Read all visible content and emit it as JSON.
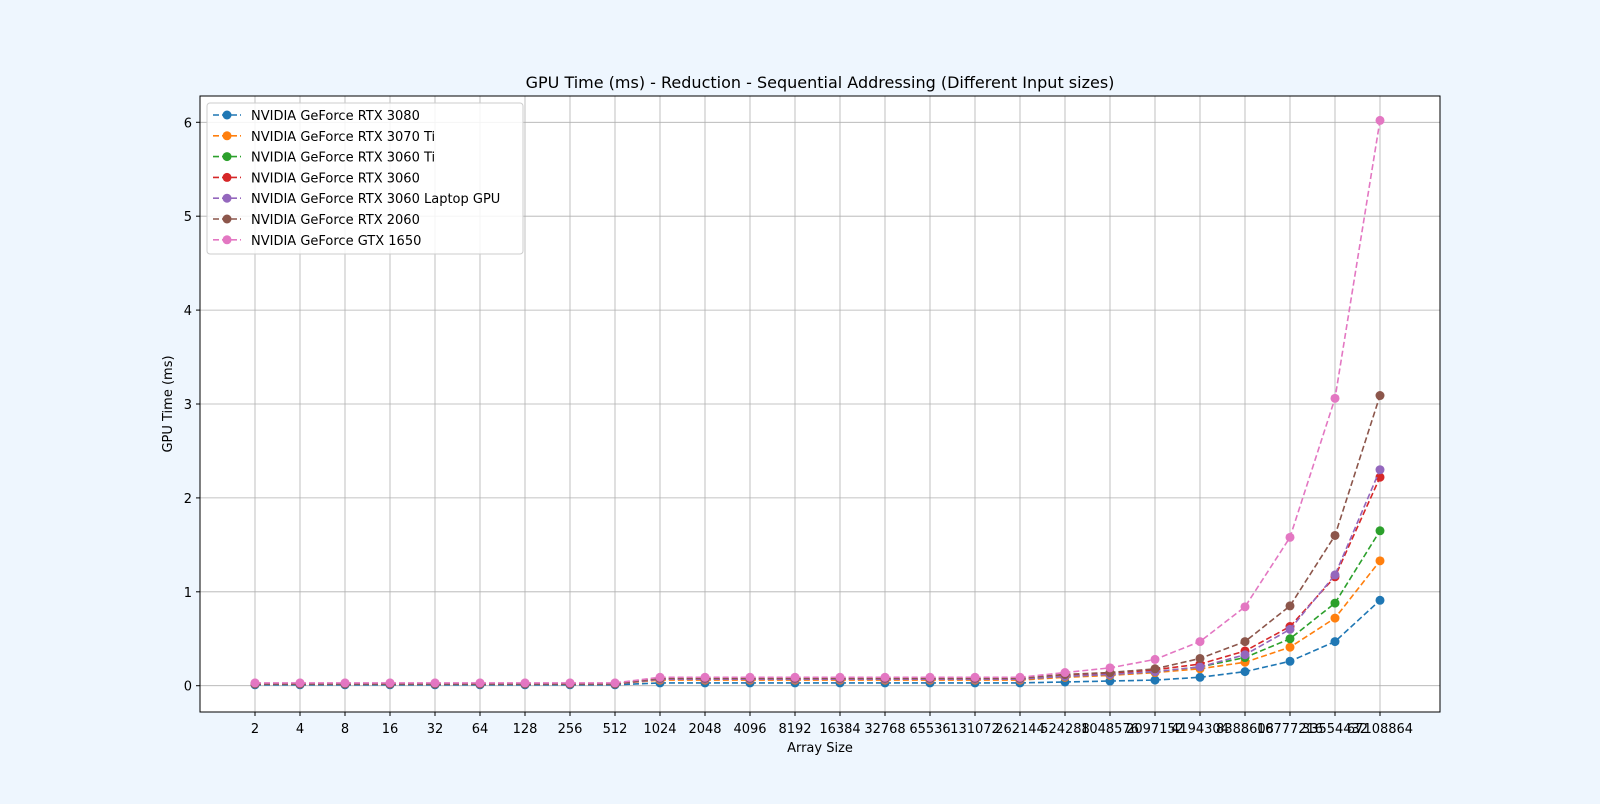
{
  "chart_data": {
    "type": "line",
    "title": "GPU Time (ms) - Reduction - Sequential Addressing (Different Input sizes)",
    "xlabel": "Array Size",
    "ylabel": "GPU Time (ms)",
    "categories": [
      "2",
      "4",
      "8",
      "16",
      "32",
      "64",
      "128",
      "256",
      "512",
      "1024",
      "2048",
      "4096",
      "8192",
      "16384",
      "32768",
      "65536",
      "131072",
      "262144",
      "524288",
      "1048576",
      "2097152",
      "4194304",
      "8388608",
      "16777216",
      "33554432",
      "67108864"
    ],
    "y_ticks": [
      "0",
      "1",
      "2",
      "3",
      "4",
      "5",
      "6"
    ],
    "ylim": [
      -0.28,
      6.28
    ],
    "grid": true,
    "legend_position": "top-left",
    "line_style": "dashed",
    "marker": "circle",
    "colors": {
      "background": "#eef6fe",
      "plot_area": "#ffffff",
      "grid": "#b0b0b0"
    },
    "series": [
      {
        "name": "NVIDIA GeForce RTX 3080",
        "color": "#1f77b4",
        "values": [
          0.01,
          0.01,
          0.01,
          0.01,
          0.01,
          0.01,
          0.01,
          0.01,
          0.01,
          0.03,
          0.03,
          0.03,
          0.03,
          0.03,
          0.03,
          0.03,
          0.03,
          0.03,
          0.04,
          0.05,
          0.06,
          0.09,
          0.15,
          0.26,
          0.47,
          0.91
        ]
      },
      {
        "name": "NVIDIA GeForce RTX 3070 Ti",
        "color": "#ff7f0e",
        "values": [
          0.02,
          0.02,
          0.02,
          0.02,
          0.02,
          0.02,
          0.02,
          0.02,
          0.02,
          0.06,
          0.06,
          0.06,
          0.06,
          0.06,
          0.06,
          0.06,
          0.06,
          0.06,
          0.09,
          0.11,
          0.14,
          0.18,
          0.25,
          0.41,
          0.72,
          1.33
        ]
      },
      {
        "name": "NVIDIA GeForce RTX 3060 Ti",
        "color": "#2ca02c",
        "values": [
          0.02,
          0.02,
          0.02,
          0.02,
          0.02,
          0.02,
          0.02,
          0.02,
          0.02,
          0.07,
          0.07,
          0.07,
          0.07,
          0.07,
          0.07,
          0.07,
          0.07,
          0.07,
          0.1,
          0.12,
          0.15,
          0.2,
          0.3,
          0.5,
          0.88,
          1.65
        ]
      },
      {
        "name": "NVIDIA GeForce RTX 3060",
        "color": "#d62728",
        "values": [
          0.02,
          0.02,
          0.02,
          0.02,
          0.02,
          0.02,
          0.02,
          0.02,
          0.02,
          0.07,
          0.07,
          0.07,
          0.07,
          0.07,
          0.07,
          0.07,
          0.07,
          0.07,
          0.11,
          0.13,
          0.17,
          0.23,
          0.37,
          0.63,
          1.16,
          2.22
        ]
      },
      {
        "name": "NVIDIA GeForce RTX 3060 Laptop GPU",
        "color": "#9467bd",
        "values": [
          0.02,
          0.02,
          0.02,
          0.02,
          0.02,
          0.02,
          0.02,
          0.02,
          0.02,
          0.07,
          0.07,
          0.07,
          0.07,
          0.07,
          0.07,
          0.07,
          0.07,
          0.07,
          0.1,
          0.12,
          0.15,
          0.2,
          0.33,
          0.6,
          1.18,
          2.3
        ]
      },
      {
        "name": "NVIDIA GeForce RTX 2060",
        "color": "#8c564b",
        "values": [
          0.02,
          0.02,
          0.02,
          0.02,
          0.02,
          0.02,
          0.02,
          0.02,
          0.02,
          0.08,
          0.08,
          0.08,
          0.08,
          0.08,
          0.08,
          0.08,
          0.08,
          0.08,
          0.12,
          0.14,
          0.18,
          0.29,
          0.47,
          0.85,
          1.6,
          3.09
        ]
      },
      {
        "name": "NVIDIA GeForce GTX 1650",
        "color": "#e377c2",
        "values": [
          0.03,
          0.03,
          0.03,
          0.03,
          0.03,
          0.03,
          0.03,
          0.03,
          0.03,
          0.09,
          0.09,
          0.09,
          0.09,
          0.09,
          0.09,
          0.09,
          0.09,
          0.09,
          0.14,
          0.19,
          0.28,
          0.47,
          0.84,
          1.58,
          3.06,
          6.02
        ]
      }
    ]
  }
}
